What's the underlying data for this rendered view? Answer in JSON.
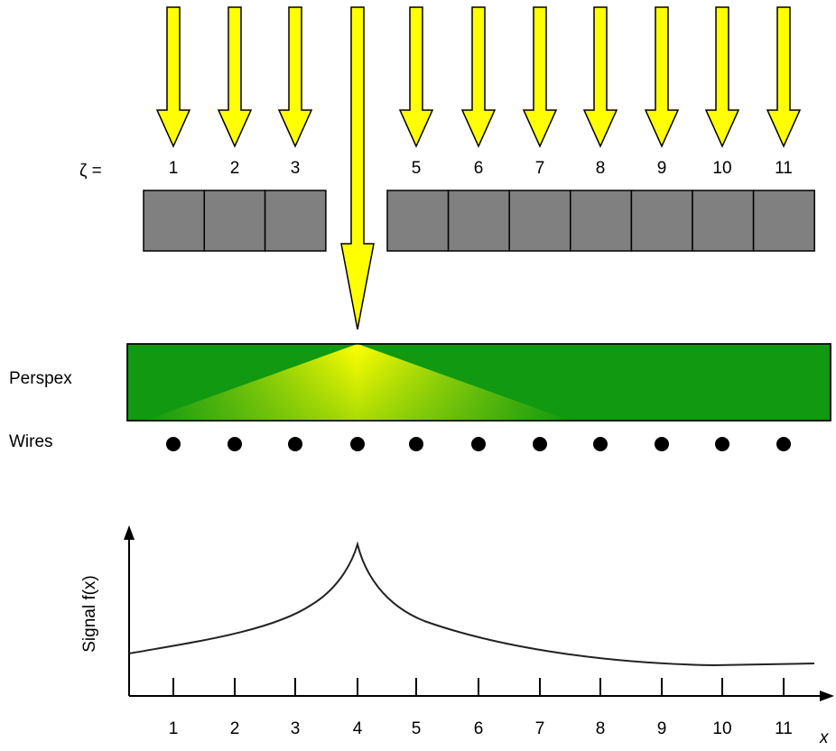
{
  "zeta_label": "ζ =",
  "detector_labels": [
    "1",
    "2",
    "3",
    "5",
    "6",
    "7",
    "8",
    "9",
    "10",
    "11"
  ],
  "perspex_label": "Perspex",
  "wires_label": "Wires",
  "plot": {
    "y_label": "Signal f(x)",
    "x_label": "x",
    "x_ticks": [
      "1",
      "2",
      "3",
      "4",
      "5",
      "6",
      "7",
      "8",
      "9",
      "10",
      "11"
    ]
  }
}
